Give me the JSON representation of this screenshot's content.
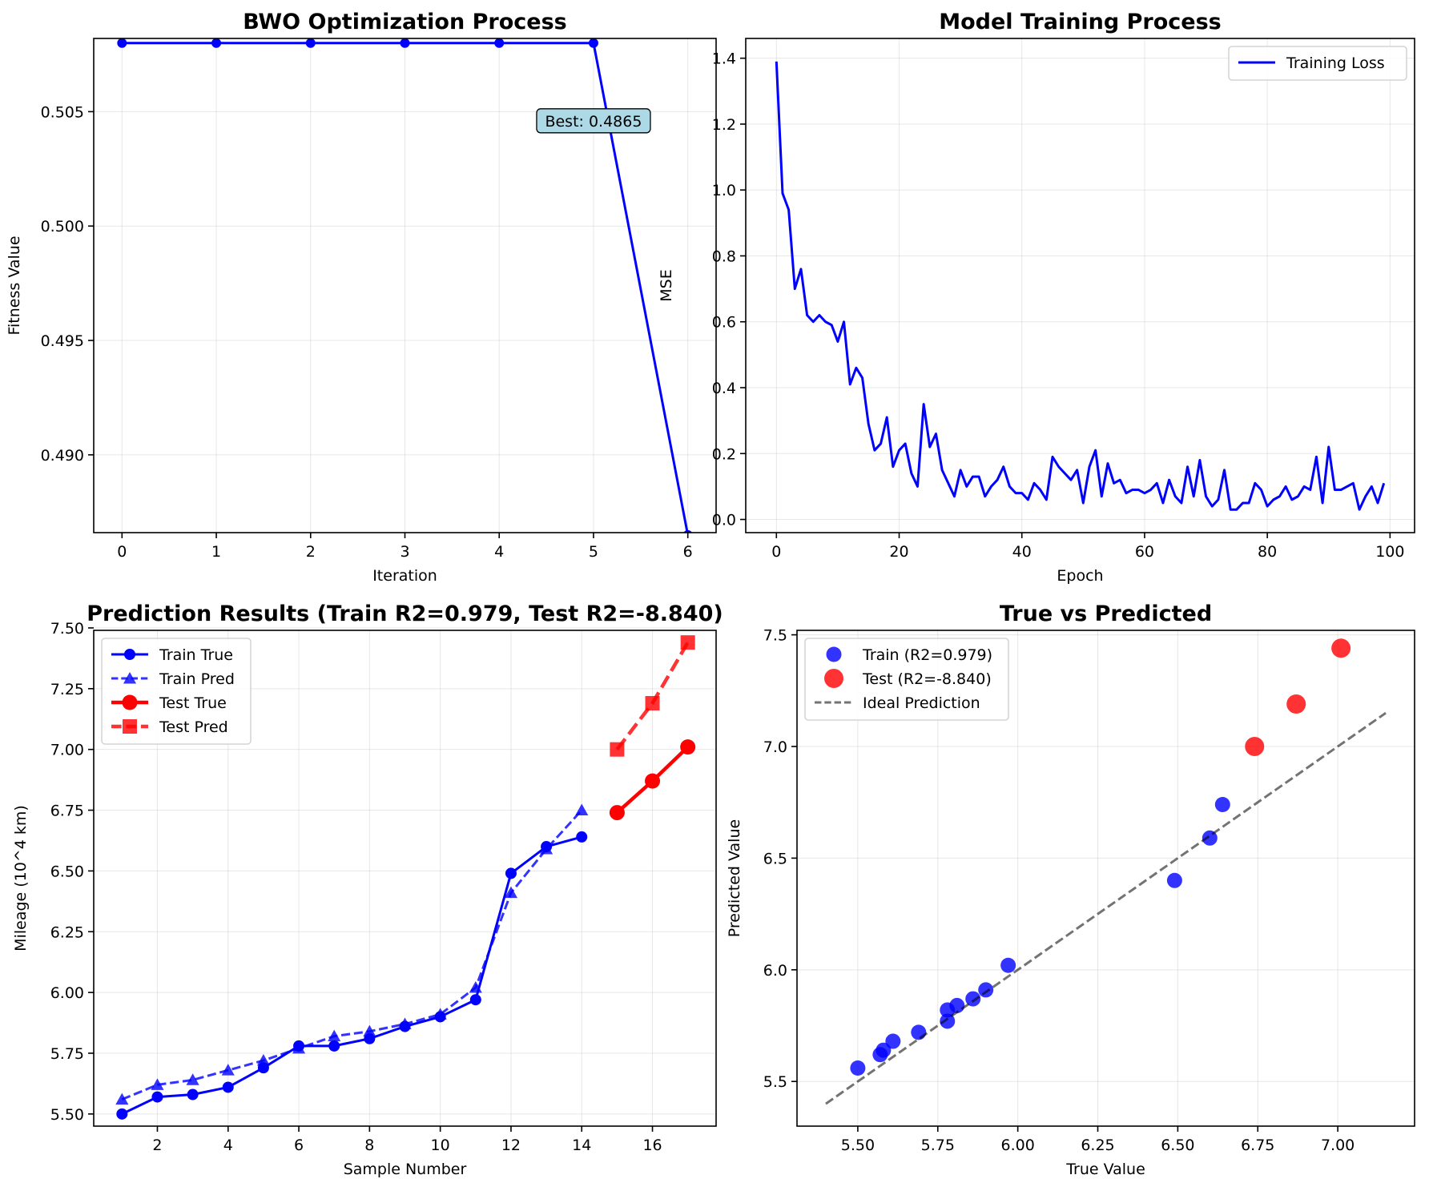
{
  "chart_data": [
    {
      "type": "line",
      "title": "BWO Optimization Process",
      "xlabel": "Iteration",
      "ylabel": "Fitness Value",
      "xlim": [
        -0.3,
        6.3
      ],
      "ylim": [
        0.4866,
        0.5082
      ],
      "xticks": [
        0,
        1,
        2,
        3,
        4,
        5,
        6
      ],
      "yticks": [
        0.49,
        0.495,
        0.5,
        0.505
      ],
      "grid": true,
      "series": [
        {
          "x": [
            0,
            1,
            2,
            3,
            4,
            5,
            6
          ],
          "y": [
            0.508,
            0.508,
            0.508,
            0.508,
            0.508,
            0.508,
            0.4865
          ],
          "color": "#0000ff",
          "marker": "circle"
        }
      ],
      "annotation": {
        "text": "Best: 0.4865",
        "x": 5.0,
        "y": 0.5046,
        "bg": "#add8e6"
      }
    },
    {
      "type": "line",
      "title": "Model Training Process",
      "xlabel": "Epoch",
      "ylabel": "MSE",
      "xlim": [
        -5,
        104
      ],
      "ylim": [
        -0.04,
        1.46
      ],
      "xticks": [
        0,
        20,
        40,
        60,
        80,
        100
      ],
      "yticks": [
        0.0,
        0.2,
        0.4,
        0.6,
        0.8,
        1.0,
        1.2,
        1.4
      ],
      "grid": true,
      "legend": "top-right",
      "series": [
        {
          "name": "Training Loss",
          "color": "#0000ff",
          "x": [
            0,
            1,
            2,
            3,
            4,
            5,
            6,
            7,
            8,
            9,
            10,
            11,
            12,
            13,
            14,
            15,
            16,
            17,
            18,
            19,
            20,
            21,
            22,
            23,
            24,
            25,
            26,
            27,
            28,
            29,
            30,
            31,
            32,
            33,
            34,
            35,
            36,
            37,
            38,
            39,
            40,
            41,
            42,
            43,
            44,
            45,
            46,
            47,
            48,
            49,
            50,
            51,
            52,
            53,
            54,
            55,
            56,
            57,
            58,
            59,
            60,
            61,
            62,
            63,
            64,
            65,
            66,
            67,
            68,
            69,
            70,
            71,
            72,
            73,
            74,
            75,
            76,
            77,
            78,
            79,
            80,
            81,
            82,
            83,
            84,
            85,
            86,
            87,
            88,
            89,
            90,
            91,
            92,
            93,
            94,
            95,
            96,
            97,
            98,
            99
          ],
          "y": [
            1.39,
            0.99,
            0.94,
            0.7,
            0.76,
            0.62,
            0.6,
            0.62,
            0.6,
            0.59,
            0.54,
            0.6,
            0.41,
            0.46,
            0.43,
            0.29,
            0.21,
            0.23,
            0.31,
            0.16,
            0.21,
            0.23,
            0.14,
            0.1,
            0.35,
            0.22,
            0.26,
            0.15,
            0.11,
            0.07,
            0.15,
            0.1,
            0.13,
            0.13,
            0.07,
            0.1,
            0.12,
            0.16,
            0.1,
            0.08,
            0.08,
            0.06,
            0.11,
            0.09,
            0.06,
            0.19,
            0.16,
            0.14,
            0.12,
            0.15,
            0.05,
            0.16,
            0.21,
            0.07,
            0.17,
            0.11,
            0.12,
            0.08,
            0.09,
            0.09,
            0.08,
            0.09,
            0.11,
            0.05,
            0.12,
            0.07,
            0.05,
            0.16,
            0.07,
            0.18,
            0.07,
            0.04,
            0.06,
            0.15,
            0.03,
            0.03,
            0.05,
            0.05,
            0.11,
            0.09,
            0.04,
            0.06,
            0.07,
            0.1,
            0.06,
            0.07,
            0.1,
            0.09,
            0.19,
            0.05,
            0.22,
            0.09,
            0.09,
            0.1,
            0.11,
            0.03,
            0.07,
            0.1,
            0.05,
            0.11
          ]
        }
      ]
    },
    {
      "type": "line",
      "title": "Prediction Results (Train R2=0.979, Test R2=-8.840)",
      "xlabel": "Sample Number",
      "ylabel": "Mileage (10^4 km)",
      "xlim": [
        0.2,
        17.8
      ],
      "ylim": [
        5.45,
        7.49
      ],
      "xticks": [
        2,
        4,
        6,
        8,
        10,
        12,
        14,
        16
      ],
      "yticks": [
        5.5,
        5.75,
        6.0,
        6.25,
        6.5,
        6.75,
        7.0,
        7.25,
        7.5
      ],
      "grid": true,
      "legend": "top-left",
      "series": [
        {
          "name": "Train True",
          "color": "#0000ff",
          "dashed": false,
          "marker": "circle",
          "lw": 3,
          "ms": 7,
          "x": [
            1,
            2,
            3,
            4,
            5,
            6,
            7,
            8,
            9,
            10,
            11,
            12,
            13,
            14
          ],
          "y": [
            5.5,
            5.57,
            5.58,
            5.61,
            5.69,
            5.78,
            5.78,
            5.81,
            5.86,
            5.9,
            5.97,
            6.49,
            6.6,
            6.64
          ]
        },
        {
          "name": "Train Pred",
          "color": "#0000ff",
          "dashed": true,
          "marker": "triangle",
          "lw": 3,
          "ms": 7,
          "alpha": 0.8,
          "x": [
            1,
            2,
            3,
            4,
            5,
            6,
            7,
            8,
            9,
            10,
            11,
            12,
            13,
            14
          ],
          "y": [
            5.56,
            5.62,
            5.64,
            5.68,
            5.72,
            5.77,
            5.82,
            5.84,
            5.87,
            5.91,
            6.02,
            6.41,
            6.59,
            6.75
          ]
        },
        {
          "name": "Test True",
          "color": "#ff0000",
          "dashed": false,
          "marker": "circle",
          "lw": 4.5,
          "ms": 9.5,
          "x": [
            15,
            16,
            17
          ],
          "y": [
            6.74,
            6.87,
            7.01
          ]
        },
        {
          "name": "Test Pred",
          "color": "#ff0000",
          "dashed": true,
          "marker": "square",
          "lw": 4.5,
          "ms": 9,
          "alpha": 0.8,
          "x": [
            15,
            16,
            17
          ],
          "y": [
            7.0,
            7.19,
            7.44
          ]
        }
      ]
    },
    {
      "type": "scatter",
      "title": "True vs Predicted",
      "xlabel": "True Value",
      "ylabel": "Predicted Value",
      "xlim": [
        5.31,
        7.24
      ],
      "ylim": [
        5.3,
        7.52
      ],
      "xticks": [
        5.5,
        5.75,
        6.0,
        6.25,
        6.5,
        6.75,
        7.0
      ],
      "yticks": [
        5.5,
        6.0,
        6.5,
        7.0,
        7.5
      ],
      "grid": true,
      "legend": "top-left",
      "series": [
        {
          "name": "Train (R2=0.979)",
          "color": "#0000ff",
          "alpha": 0.8,
          "r": 9.5,
          "x": [
            5.5,
            5.57,
            5.58,
            5.61,
            5.69,
            5.78,
            5.78,
            5.81,
            5.86,
            5.9,
            5.97,
            6.49,
            6.6,
            6.64
          ],
          "y": [
            5.56,
            5.62,
            5.64,
            5.68,
            5.72,
            5.77,
            5.82,
            5.84,
            5.87,
            5.91,
            6.02,
            6.4,
            6.59,
            6.74
          ]
        },
        {
          "name": "Test (R2=-8.840)",
          "color": "#ff0000",
          "alpha": 0.8,
          "r": 12,
          "x": [
            6.74,
            6.87,
            7.01
          ],
          "y": [
            7.0,
            7.19,
            7.44
          ]
        },
        {
          "name": "Ideal Prediction",
          "type": "line",
          "dashed": true,
          "color": "#000000",
          "alpha": 0.55,
          "x": [
            5.4,
            7.15
          ],
          "y": [
            5.4,
            7.15
          ]
        }
      ]
    }
  ]
}
